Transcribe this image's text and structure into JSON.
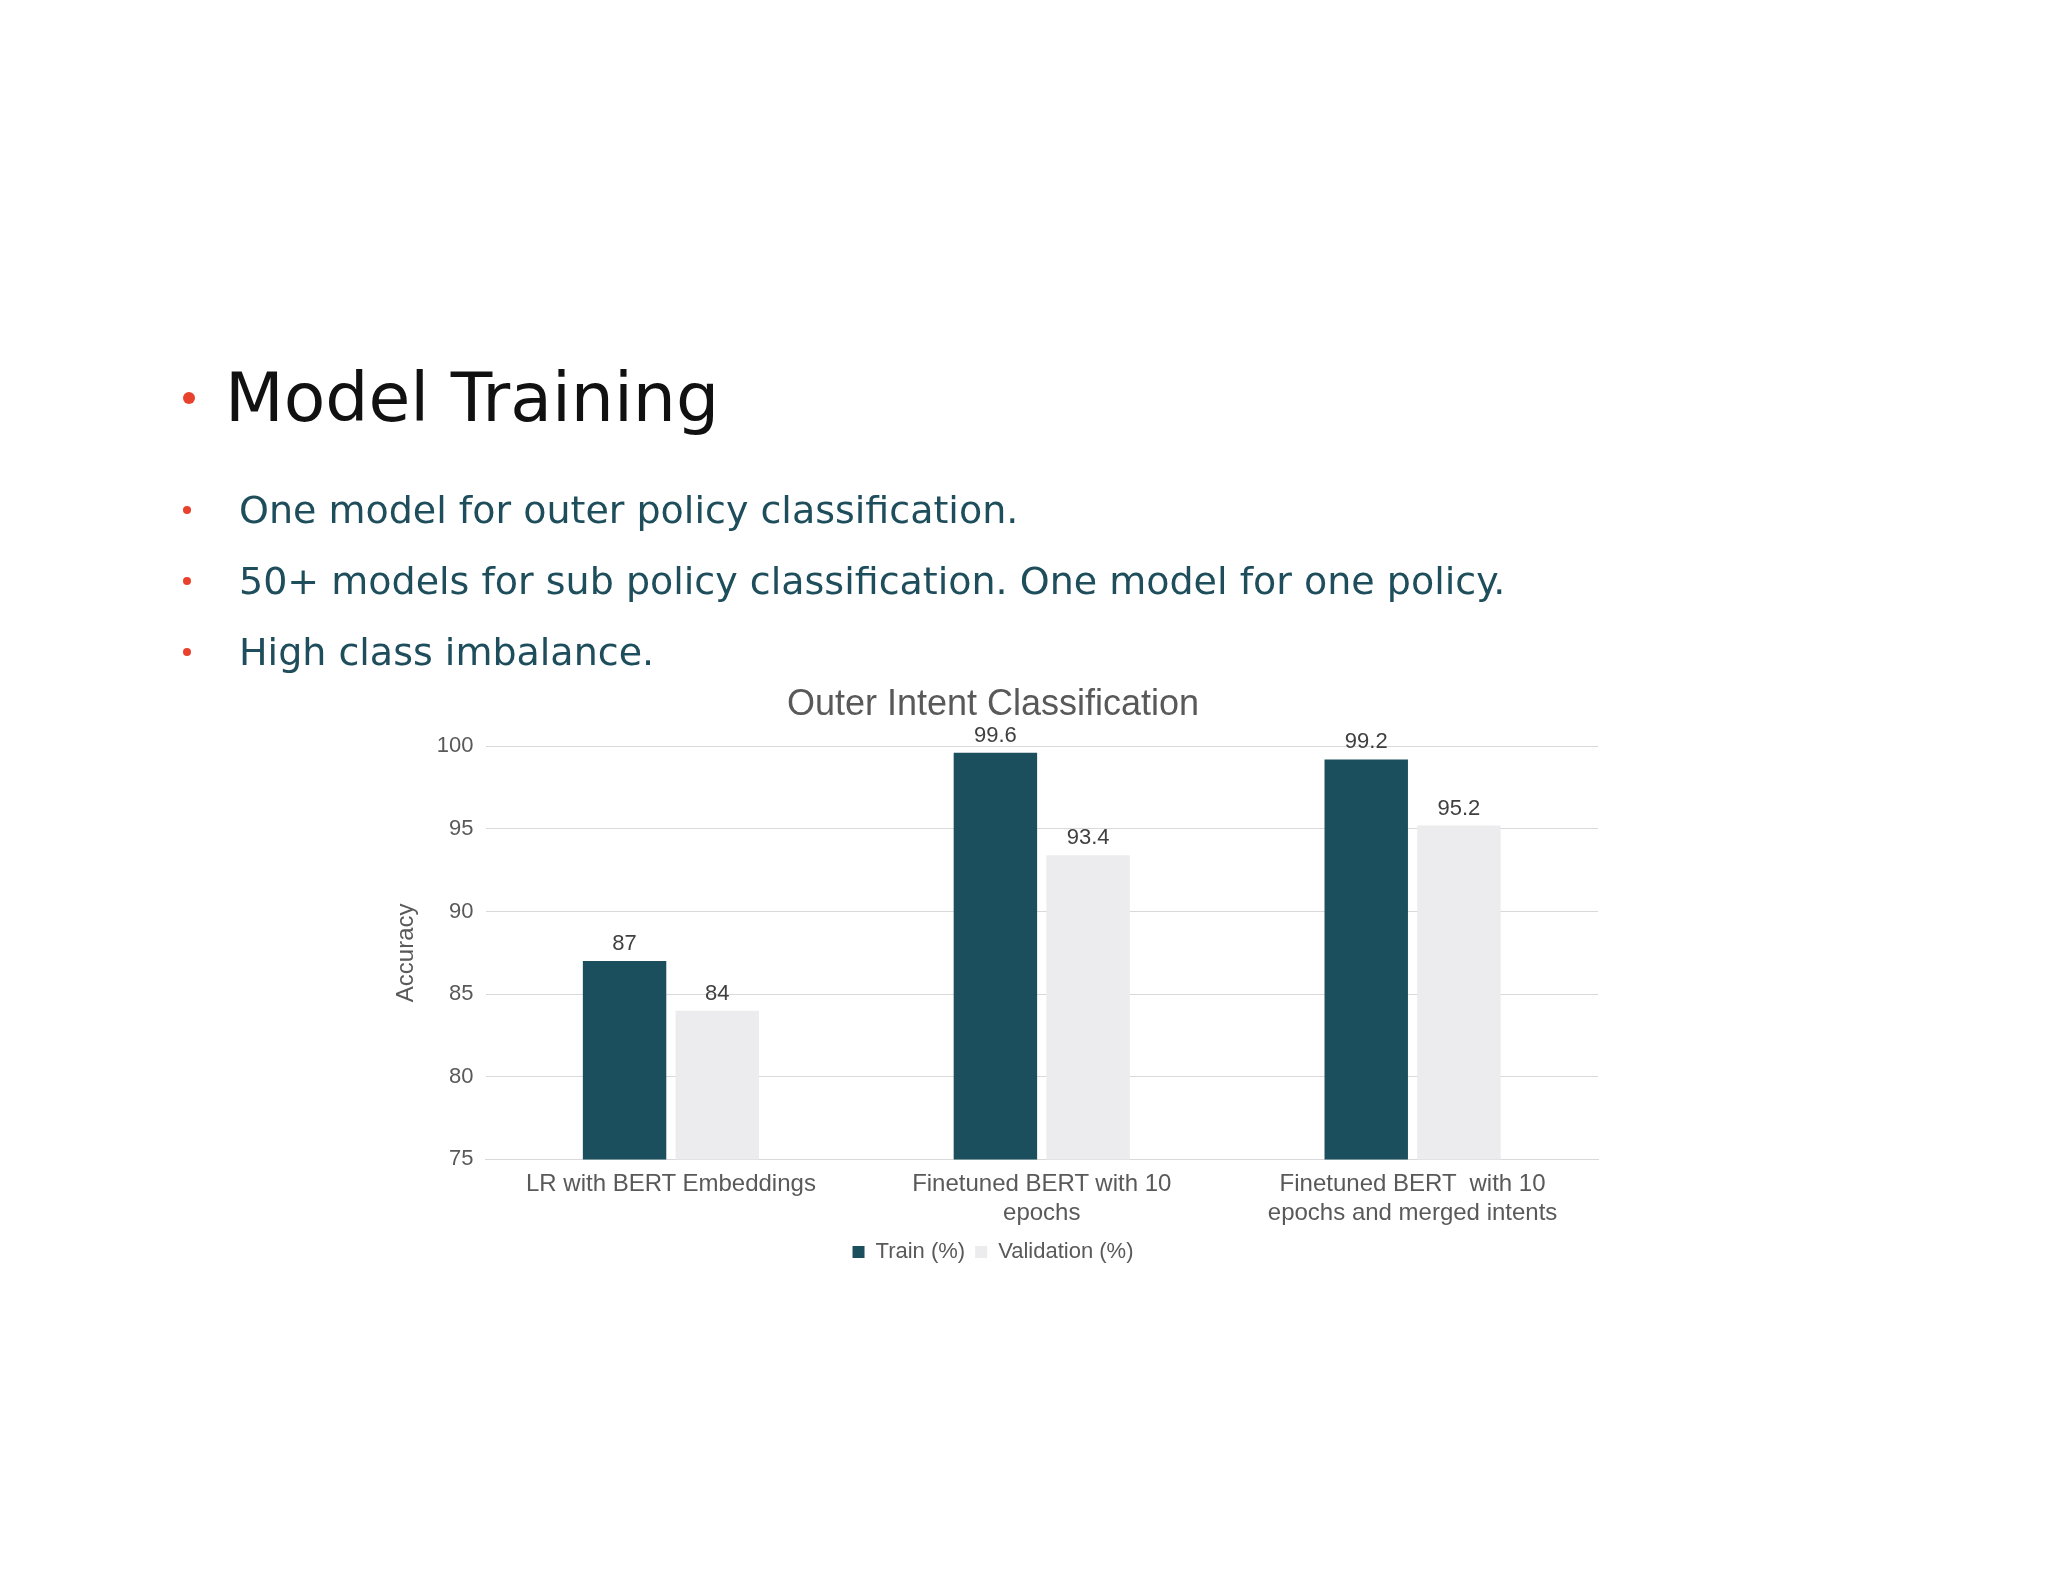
{
  "chart_data": {
    "type": "bar",
    "title": "Outer Intent Classification",
    "ylabel": "Accuracy",
    "annotations": [
      "Model Training",
      "One model for outer policy classification.",
      "50+ models for sub policy classification. One model for one policy.",
      "High class imbalance."
    ],
    "categories": [
      "LR with BERT Embeddings",
      "Finetuned BERT with 10 epochs",
      "Finetuned BERT  with 10 epochs and merged intents"
    ],
    "series": [
      {
        "name": "Train (%)",
        "color": "#1b4f5e",
        "values": [
          87,
          99.6,
          99.2
        ]
      },
      {
        "name": "Validation (%)",
        "color": "#ececee",
        "values": [
          84,
          93.4,
          95.2
        ]
      }
    ],
    "ylim": [
      75,
      100
    ],
    "yticks": [
      75,
      80,
      85,
      90,
      95,
      100
    ],
    "grid": "y",
    "legend": "bottom",
    "data_labels": true
  }
}
